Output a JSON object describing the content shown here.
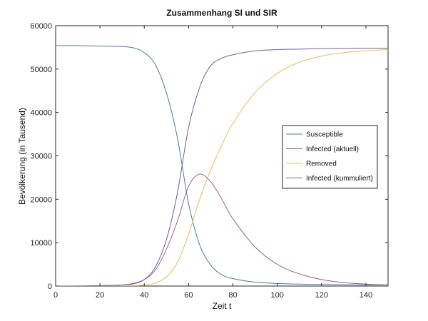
{
  "chart_data": {
    "type": "line",
    "title": "Zusammenhang SI und SIR",
    "xlabel": "Zeit t",
    "ylabel": "Bevölkerung (in Tausend)",
    "xlim": [
      0,
      150
    ],
    "ylim": [
      0,
      60000
    ],
    "xticks": [
      0,
      20,
      40,
      60,
      80,
      100,
      120,
      140
    ],
    "yticks": [
      0,
      10000,
      20000,
      30000,
      40000,
      50000,
      60000
    ],
    "grid": false,
    "legend_position": "right",
    "x": [
      0,
      10,
      20,
      30,
      35,
      40,
      45,
      50,
      55,
      60,
      65,
      70,
      75,
      80,
      90,
      100,
      110,
      120,
      130,
      140,
      150
    ],
    "series": [
      {
        "name": "Susceptible",
        "color": "#4a78a6",
        "values": [
          55400,
          55400,
          55300,
          55200,
          54900,
          53800,
          51000,
          44500,
          34000,
          19000,
          9500,
          4800,
          2600,
          1700,
          900,
          600,
          450,
          350,
          300,
          280,
          260
        ]
      },
      {
        "name": "Infected (aktuell)",
        "color": "#a35f7c",
        "values": [
          0,
          20,
          80,
          250,
          600,
          1500,
          3700,
          8500,
          15000,
          23000,
          25800,
          24000,
          20000,
          15500,
          9000,
          5000,
          2800,
          1500,
          800,
          450,
          250
        ]
      },
      {
        "name": "Removed",
        "color": "#e2bd5c",
        "values": [
          0,
          0,
          0,
          20,
          80,
          200,
          700,
          2100,
          5500,
          12000,
          20000,
          26800,
          32500,
          37500,
          44600,
          49000,
          51600,
          53000,
          53800,
          54200,
          54500
        ]
      },
      {
        "name": "Infected (kummuliert)",
        "color": "#6e6099",
        "values": [
          0,
          0,
          100,
          250,
          500,
          1500,
          4400,
          10700,
          21600,
          36600,
          45800,
          50800,
          52500,
          53300,
          54200,
          54500,
          54600,
          54700,
          54750,
          54800,
          54800
        ]
      }
    ]
  }
}
